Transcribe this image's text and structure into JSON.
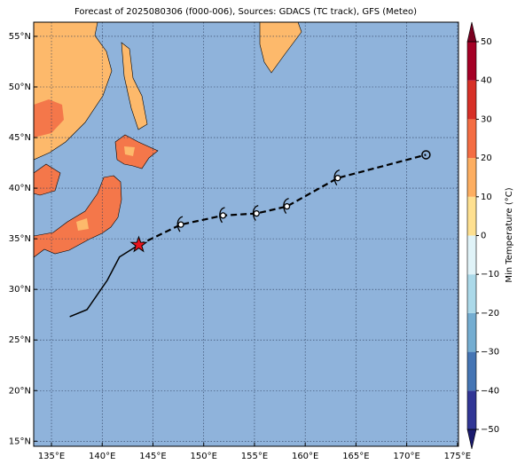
{
  "title": "Forecast of 2025080306 (f000-006), Sources: GDACS (TC track), GFS (Meteo)",
  "map": {
    "lon_range": [
      133.25,
      175.1
    ],
    "lat_range": [
      14.5,
      56.4
    ],
    "grid": true,
    "ocean_color": "#8fb3db",
    "xticks": [
      {
        "value": 135,
        "label": "135°E"
      },
      {
        "value": 140,
        "label": "140°E"
      },
      {
        "value": 145,
        "label": "145°E"
      },
      {
        "value": 150,
        "label": "150°E"
      },
      {
        "value": 155,
        "label": "155°E"
      },
      {
        "value": 160,
        "label": "160°E"
      },
      {
        "value": 165,
        "label": "165°E"
      },
      {
        "value": 170,
        "label": "170°E"
      },
      {
        "value": 175,
        "label": "175°E"
      }
    ],
    "yticks": [
      {
        "value": 15,
        "label": "15°N"
      },
      {
        "value": 20,
        "label": "20°N"
      },
      {
        "value": 25,
        "label": "25°N"
      },
      {
        "value": 30,
        "label": "30°N"
      },
      {
        "value": 35,
        "label": "35°N"
      },
      {
        "value": 40,
        "label": "40°N"
      },
      {
        "value": 45,
        "label": "45°N"
      },
      {
        "value": 50,
        "label": "50°N"
      },
      {
        "value": 55,
        "label": "55°N"
      }
    ]
  },
  "track": {
    "past": {
      "lon": [
        136.8,
        138.5,
        140.5,
        141.7,
        143.6
      ],
      "lat": [
        27.3,
        28.0,
        30.9,
        33.2,
        34.4
      ],
      "color": "#000000"
    },
    "forecast": {
      "lon": [
        143.6,
        147.75,
        151.9,
        155.2,
        158.2,
        163.2,
        171.9
      ],
      "lat": [
        34.4,
        36.4,
        37.3,
        37.5,
        38.2,
        41.0,
        43.3
      ],
      "color": "#000000"
    },
    "current": {
      "lon": 143.6,
      "lat": 34.4,
      "color": "#e8141c"
    }
  },
  "colorbar": {
    "label": "Min Temperature (°C)",
    "ticks": [
      {
        "value": -50,
        "label": "−50"
      },
      {
        "value": -40,
        "label": "−40"
      },
      {
        "value": -30,
        "label": "−30"
      },
      {
        "value": -20,
        "label": "−20"
      },
      {
        "value": -10,
        "label": "−10"
      },
      0,
      10,
      20,
      30,
      40,
      50
    ],
    "colors": [
      "#313695",
      "#4575b4",
      "#74add1",
      "#abd9e9",
      "#e0f3f8",
      "#fee090",
      "#fdae61",
      "#f46d43",
      "#d73027",
      "#a50026"
    ],
    "under_color": "#1a1a6e",
    "over_color": "#7a0020"
  }
}
